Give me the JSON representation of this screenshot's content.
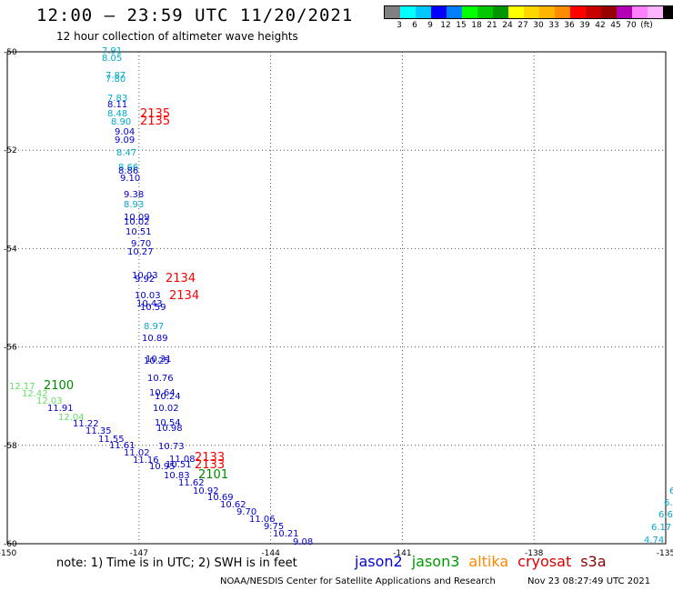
{
  "header": {
    "title": "12:00 – 23:59 UTC 11/20/2021",
    "subtitle": "12 hour collection of altimeter wave heights"
  },
  "color_legend": {
    "colors": [
      "#808080",
      "#00ffff",
      "#00c8ff",
      "#0000ff",
      "#0080ff",
      "#00ff00",
      "#00c800",
      "#009600",
      "#ffff00",
      "#ffd700",
      "#ffb400",
      "#ff8c00",
      "#ff0000",
      "#c80000",
      "#960000",
      "#b400b4",
      "#ff80ff",
      "#ffb4ff",
      "#000000"
    ],
    "labels": [
      "3",
      "6",
      "9",
      "12",
      "15",
      "18",
      "21",
      "24",
      "27",
      "30",
      "33",
      "36",
      "39",
      "42",
      "45",
      "70",
      "(ft)"
    ]
  },
  "map": {
    "lat_labels": [
      "-50",
      "-52",
      "-54",
      "-56",
      "-58",
      "-60"
    ],
    "lon_labels": [
      "-150",
      "-147",
      "-144",
      "-141",
      "-138",
      "-135"
    ]
  },
  "tracks": [
    {
      "time_label": "2135",
      "color": "#ff0000",
      "points": [
        {
          "v": "7.91",
          "c": "#00aacc"
        },
        {
          "v": "8.05",
          "c": "#00aacc"
        },
        {
          "v": "7.87",
          "c": "#00aacc"
        },
        {
          "v": "7.80",
          "c": "#00aacc"
        },
        {
          "v": "7.83",
          "c": "#00aacc"
        },
        {
          "v": "8.11",
          "c": "#0000cc"
        },
        {
          "v": "8.48",
          "c": "#00aacc"
        },
        {
          "v": "8.90",
          "c": "#00aacc"
        },
        {
          "v": "9.04",
          "c": "#0000cc"
        },
        {
          "v": "9.09",
          "c": "#0000cc"
        },
        {
          "v": "8.47",
          "c": "#00aacc"
        },
        {
          "v": "8.66",
          "c": "#00aacc"
        },
        {
          "v": "8.86",
          "c": "#0000cc"
        },
        {
          "v": "9.10",
          "c": "#0000cc"
        },
        {
          "v": "9.38",
          "c": "#0000cc"
        },
        {
          "v": "8.93",
          "c": "#00aacc"
        },
        {
          "v": "10.09",
          "c": "#0000cc"
        },
        {
          "v": "10.02",
          "c": "#0000cc"
        },
        {
          "v": "10.51",
          "c": "#0000cc"
        },
        {
          "v": "9.70",
          "c": "#0000cc"
        },
        {
          "v": "10.27",
          "c": "#0000cc"
        }
      ]
    },
    {
      "time_label": "2134",
      "color": "#ff0000",
      "points": [
        {
          "v": "10.03",
          "c": "#0000cc"
        },
        {
          "v": "9.92",
          "c": "#0000cc"
        },
        {
          "v": "10.03",
          "c": "#0000cc"
        },
        {
          "v": "10.43",
          "c": "#0000cc"
        },
        {
          "v": "10.59",
          "c": "#0000cc"
        },
        {
          "v": "8.97",
          "c": "#00aacc"
        },
        {
          "v": "10.89",
          "c": "#0000cc"
        },
        {
          "v": "10.31",
          "c": "#0000cc"
        },
        {
          "v": "10.25",
          "c": "#0000cc"
        },
        {
          "v": "10.76",
          "c": "#0000cc"
        },
        {
          "v": "10.64",
          "c": "#0000cc"
        },
        {
          "v": "10.24",
          "c": "#0000cc"
        },
        {
          "v": "10.02",
          "c": "#0000cc"
        },
        {
          "v": "10.54",
          "c": "#0000cc"
        },
        {
          "v": "10.98",
          "c": "#0000cc"
        },
        {
          "v": "10.73",
          "c": "#0000cc"
        }
      ]
    },
    {
      "time_label": "2133",
      "color": "#ff0000",
      "points": [
        {
          "v": "11.08",
          "c": "#0000cc"
        },
        {
          "v": "11.16",
          "c": "#0000cc"
        },
        {
          "v": "10.95",
          "c": "#0000cc"
        },
        {
          "v": "10.51",
          "c": "#0000cc"
        },
        {
          "v": "10.83",
          "c": "#0000cc"
        },
        {
          "v": "11.62",
          "c": "#0000cc"
        },
        {
          "v": "10.92",
          "c": "#0000cc"
        },
        {
          "v": "10.69",
          "c": "#0000cc"
        },
        {
          "v": "10.62",
          "c": "#0000cc"
        },
        {
          "v": "9.70",
          "c": "#0000cc"
        },
        {
          "v": "11.06",
          "c": "#0000cc"
        },
        {
          "v": "9.75",
          "c": "#0000cc"
        },
        {
          "v": "10.21",
          "c": "#0000cc"
        },
        {
          "v": "9.08",
          "c": "#0000cc"
        }
      ]
    },
    {
      "time_label": "2100",
      "color": "#008800",
      "points": [
        {
          "v": "12.17",
          "c": "#66dd66"
        },
        {
          "v": "12.42",
          "c": "#66dd66"
        },
        {
          "v": "12.03",
          "c": "#66dd66"
        },
        {
          "v": "11.91",
          "c": "#0000cc"
        },
        {
          "v": "12.04",
          "c": "#66dd66"
        },
        {
          "v": "11.22",
          "c": "#0000cc"
        },
        {
          "v": "11.35",
          "c": "#0000cc"
        },
        {
          "v": "11.55",
          "c": "#0000cc"
        },
        {
          "v": "11.61",
          "c": "#0000cc"
        },
        {
          "v": "11.02",
          "c": "#0000cc"
        }
      ]
    },
    {
      "time_label": "2101",
      "color": "#008800",
      "points": []
    },
    {
      "time_label": "",
      "color": "#00aacc",
      "points": [
        {
          "v": "6",
          "c": "#00aacc"
        },
        {
          "v": "6.",
          "c": "#00aacc"
        },
        {
          "v": "6.6",
          "c": "#00aacc"
        },
        {
          "v": "6.17",
          "c": "#00aacc"
        },
        {
          "v": "4.74",
          "c": "#00aacc"
        }
      ]
    }
  ],
  "footer": {
    "note": "note:  1) Time is in UTC;  2) SWH is in feet",
    "satellites": [
      {
        "name": "jason2",
        "color": "#0000dd"
      },
      {
        "name": "jason3",
        "color": "#009900"
      },
      {
        "name": "altika",
        "color": "#ff8800"
      },
      {
        "name": "cryosat",
        "color": "#dd0000"
      },
      {
        "name": "s3a",
        "color": "#880000"
      }
    ],
    "credit": "NOAA/NESDIS Center for Satellite Applications and Research",
    "timestamp": "Nov 23 08:27:49 UTC 2021"
  }
}
